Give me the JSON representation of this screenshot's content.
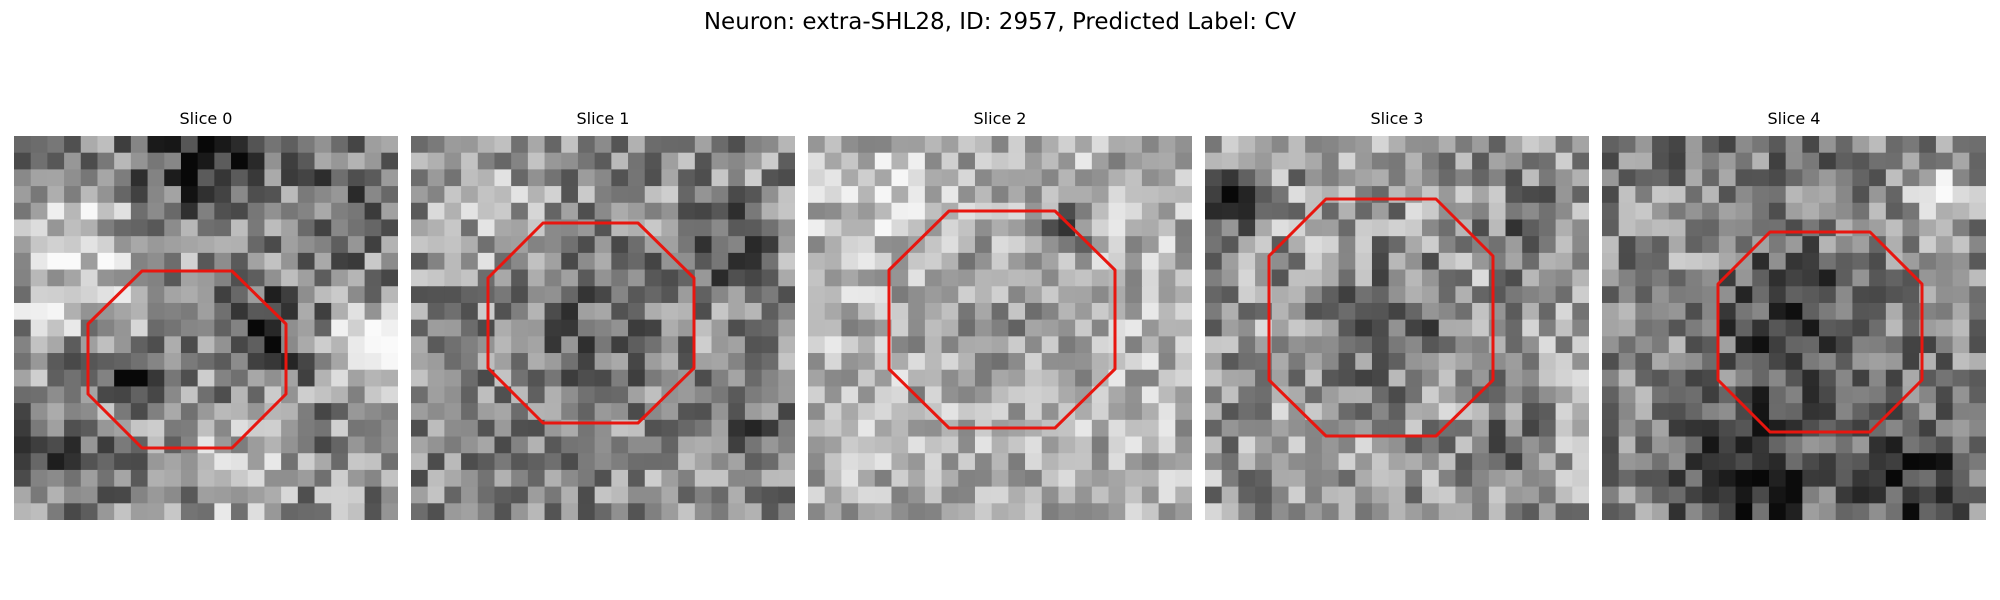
{
  "figure": {
    "title": "Neuron: extra-SHL28, ID: 2957, Predicted Label: CV"
  },
  "slices": [
    {
      "title": "Slice 0"
    },
    {
      "title": "Slice 1"
    },
    {
      "title": "Slice 2"
    },
    {
      "title": "Slice 3"
    },
    {
      "title": "Slice 4"
    }
  ],
  "colors": {
    "background": "#ffffff",
    "contour": "#e8160f",
    "image_colormap": "grayscale"
  }
}
